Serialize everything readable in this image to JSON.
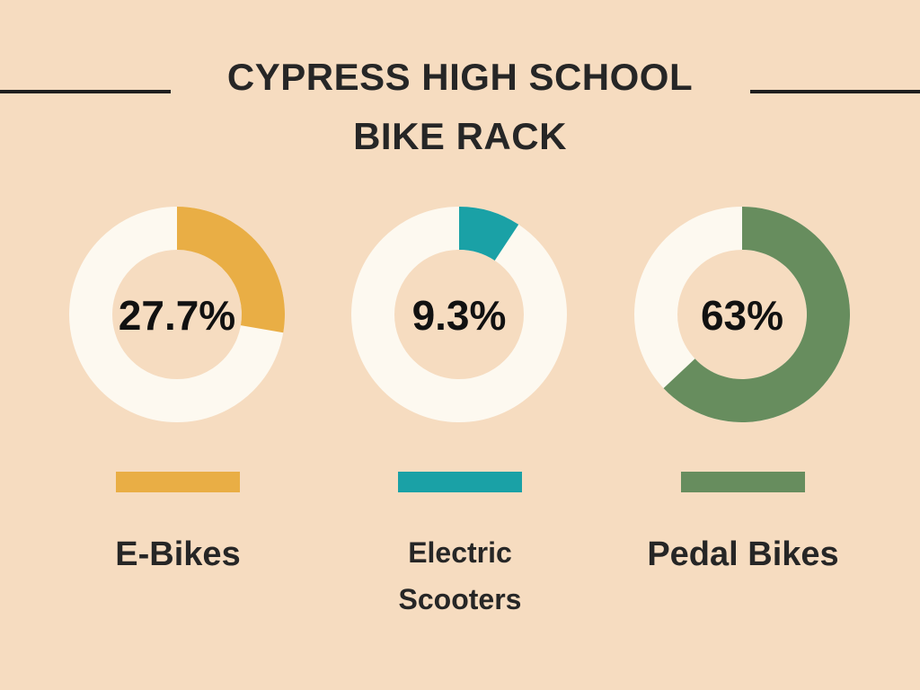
{
  "header": {
    "title_line1": "CYPRESS HIGH SCHOOL",
    "title_line2": "BIKE RACK"
  },
  "chart_data": {
    "type": "pie",
    "title": "CYPRESS HIGH SCHOOL BIKE RACK",
    "series": [
      {
        "name": "E-Bikes",
        "value": 27.7,
        "label": "27.7%",
        "color": "#e9ae45"
      },
      {
        "name": "Electric Scooters",
        "value": 9.3,
        "label": "9.3%",
        "color": "#1aa1a6"
      },
      {
        "name": "Pedal Bikes",
        "value": 63,
        "label": "63%",
        "color": "#678d5e"
      }
    ],
    "track_color": "#fdf9f0"
  },
  "legend": {
    "item1_label": "E-Bikes",
    "item2_label_line1": "Electric",
    "item2_label_line2": "Scooters",
    "item3_label": "Pedal Bikes"
  }
}
